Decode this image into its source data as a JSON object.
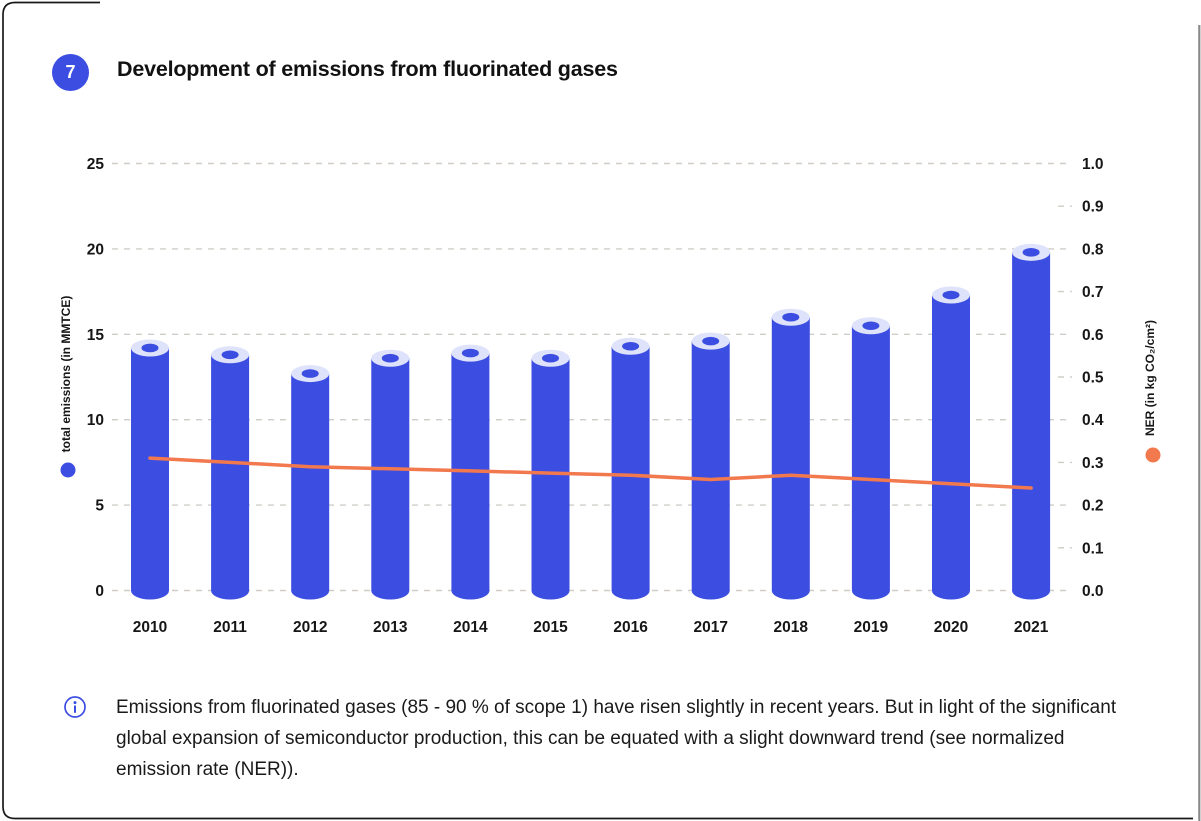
{
  "page": {
    "figure_number": "7",
    "title": "Development of emissions from fluorinated gases",
    "note": "Emissions from fluorinated gases (85 - 90 % of scope 1) have risen slightly in recent years. But in light of the significant global expansion of semiconductor production, this can be equated with a slight downward trend (see normalized emission rate (NER))."
  },
  "colors": {
    "bar_blue": "#3C4DE2",
    "bar_top_light": "#DEE3FB",
    "line_orange": "#F2784E",
    "grid": "#D0CDC7",
    "text": "#161616",
    "frame": "#1A1A1A",
    "right_edge": "#8A8A8A",
    "badge": "#3C4DE2"
  },
  "chart_data": {
    "type": "bar",
    "title": "Development of emissions from fluorinated gases",
    "categories": [
      "2010",
      "2011",
      "2012",
      "2013",
      "2014",
      "2015",
      "2016",
      "2017",
      "2018",
      "2019",
      "2020",
      "2021"
    ],
    "series": [
      {
        "name": "total emissions (in MMTCE)",
        "type": "bar",
        "axis": "left",
        "color": "#3C4DE2",
        "values": [
          14.2,
          13.8,
          12.7,
          13.6,
          13.9,
          13.6,
          14.3,
          14.6,
          16.0,
          15.5,
          17.3,
          19.8
        ]
      },
      {
        "name": "NER (in kg CO₂/cm²)",
        "type": "line",
        "axis": "right",
        "color": "#F2784E",
        "values": [
          0.31,
          0.3,
          0.29,
          0.285,
          0.28,
          0.275,
          0.27,
          0.26,
          0.27,
          0.26,
          0.25,
          0.24
        ]
      }
    ],
    "left_axis": {
      "label": "total emissions (in MMTCE)",
      "min": 0,
      "max": 25,
      "tick_step": 5,
      "ticks": [
        "0",
        "5",
        "10",
        "15",
        "20",
        "25"
      ]
    },
    "right_axis": {
      "label": "NER (in kg CO₂/cm²)",
      "min": 0,
      "max": 1,
      "tick_step": 0.1,
      "ticks": [
        "0.0",
        "0.1",
        "0.2",
        "0.3",
        "0.4",
        "0.5",
        "0.6",
        "0.7",
        "0.8",
        "0.9",
        "1.0"
      ]
    },
    "grid": "horizontal dashed",
    "legend_position": "rotated axis labels with colored dots"
  }
}
